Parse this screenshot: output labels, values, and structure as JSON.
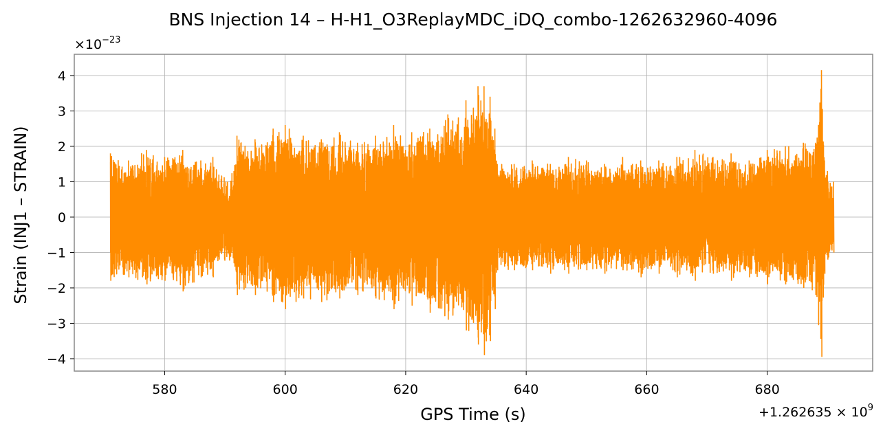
{
  "chart_data": {
    "type": "line",
    "title": "BNS Injection 14 – H-H1_O3ReplayMDC_iDQ_combo-1262632960-4096",
    "xlabel": "GPS Time (s)",
    "ylabel": "Strain (INJ1 – STRAIN)",
    "x_offset_label": "+1.262635",
    "x_offset_times": "×",
    "x_offset_base": "10",
    "x_offset_exp": "9",
    "y_multiplier_prefix": "×10",
    "y_multiplier_exp": "−23",
    "xlim": [
      565,
      697.5
    ],
    "ylim": [
      -4.35,
      4.6
    ],
    "x_ticks": [
      580,
      600,
      620,
      640,
      660,
      680
    ],
    "x_tick_labels": [
      "580",
      "600",
      "620",
      "640",
      "660",
      "680"
    ],
    "y_ticks": [
      -4,
      -3,
      -2,
      -1,
      0,
      1,
      2,
      3,
      4
    ],
    "y_tick_labels": [
      "−4",
      "−3",
      "−2",
      "−1",
      "0",
      "1",
      "2",
      "3",
      "4"
    ],
    "grid": true,
    "series": [
      {
        "color": "#ff8c00",
        "x_range": [
          571,
          691
        ],
        "envelope_x": [
          571,
          574,
          577,
          580,
          583,
          586,
          588,
          589,
          591.5,
          592,
          595,
          598,
          600,
          603,
          606,
          609,
          612,
          615,
          618,
          621,
          624,
          627,
          630,
          632,
          633,
          634,
          634.8,
          635.2,
          638,
          641,
          644,
          647,
          650,
          653,
          656,
          659,
          662,
          665,
          668,
          671,
          674,
          677,
          680,
          683,
          686,
          688,
          689,
          689.5,
          690,
          691
        ],
        "envelope_upper": [
          1.8,
          1.6,
          1.9,
          1.7,
          1.9,
          1.6,
          1.7,
          1.2,
          1.3,
          2.3,
          2.2,
          2.5,
          2.6,
          2.3,
          2.2,
          2.4,
          2.1,
          2.3,
          2.6,
          2.4,
          2.5,
          2.9,
          3.3,
          3.7,
          3.7,
          3.4,
          2.5,
          1.5,
          1.5,
          1.6,
          1.5,
          1.7,
          1.6,
          1.5,
          1.7,
          1.6,
          1.6,
          1.7,
          1.9,
          1.7,
          1.8,
          1.6,
          1.9,
          2.0,
          2.1,
          2.1,
          4.15,
          1.6,
          1.3,
          1.0
        ],
        "envelope_lower": [
          -1.8,
          -1.7,
          -1.9,
          -1.8,
          -2.1,
          -1.7,
          -1.7,
          -1.2,
          -1.3,
          -2.2,
          -2.2,
          -2.4,
          -2.6,
          -2.3,
          -2.4,
          -2.3,
          -2.2,
          -2.3,
          -2.6,
          -2.5,
          -2.7,
          -2.9,
          -3.2,
          -3.6,
          -3.9,
          -3.5,
          -2.6,
          -1.5,
          -1.5,
          -1.5,
          -1.6,
          -1.6,
          -1.5,
          -1.6,
          -1.5,
          -1.7,
          -1.6,
          -1.7,
          -1.8,
          -1.6,
          -1.8,
          -1.7,
          -1.9,
          -1.9,
          -2.0,
          -2.2,
          -3.95,
          -1.6,
          -1.2,
          -1.0
        ]
      }
    ]
  }
}
